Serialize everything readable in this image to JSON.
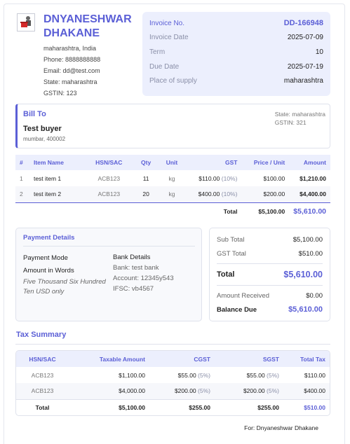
{
  "company": {
    "name": "DNYANESHWAR DHAKANE",
    "location": "maharashtra, India",
    "phone": "Phone: 8888888888",
    "email": "Email: dd@test.com",
    "state": "State: maharashtra",
    "gstin": "GSTIN: 123"
  },
  "invoice": {
    "rows": [
      {
        "label": "Invoice No.",
        "value": "DD-166948"
      },
      {
        "label": "Invoice Date",
        "value": "2025-07-09"
      },
      {
        "label": "Term",
        "value": "10"
      },
      {
        "label": "Due Date",
        "value": "2025-07-19"
      },
      {
        "label": "Place of supply",
        "value": "maharashtra"
      }
    ]
  },
  "bill_to": {
    "title": "Bill To",
    "name": "Test buyer",
    "address": "mumbar, 400002",
    "state": "State: maharashtra",
    "gstin": "GSTIN: 321"
  },
  "items": {
    "headers": [
      "#",
      "Item Name",
      "HSN/SAC",
      "Qty",
      "Unit",
      "GST",
      "Price / Unit",
      "Amount"
    ],
    "rows": [
      {
        "no": "1",
        "name": "test item 1",
        "hsn": "ACB123",
        "qty": "11",
        "unit": "kg",
        "gst": "$110.00",
        "gst_pct": "(10%)",
        "price": "$100.00",
        "amount": "$1,210.00"
      },
      {
        "no": "2",
        "name": "test item 2",
        "hsn": "ACB123",
        "qty": "20",
        "unit": "kg",
        "gst": "$400.00",
        "gst_pct": "(10%)",
        "price": "$200.00",
        "amount": "$4,400.00"
      }
    ],
    "total_label": "Total",
    "total_price": "$5,100.00",
    "total_amount": "$5,610.00"
  },
  "payment": {
    "title": "Payment Details",
    "mode_label": "Payment Mode",
    "words_label": "Amount in Words",
    "words_value": "Five Thousand Six Hundred Ten USD only",
    "bank_label": "Bank Details",
    "bank_name": "Bank: test bank",
    "account": "Account: 12345y543",
    "ifsc": "IFSC: vb4567"
  },
  "summary": {
    "sub_total_label": "Sub Total",
    "sub_total": "$5,100.00",
    "gst_total_label": "GST Total",
    "gst_total": "$510.00",
    "total_label": "Total",
    "total": "$5,610.00",
    "received_label": "Amount Received",
    "received": "$0.00",
    "balance_label": "Balance Due",
    "balance": "$5,610.00"
  },
  "tax_summary": {
    "title": "Tax Summary",
    "headers": [
      "HSN/SAC",
      "Taxable Amount",
      "CGST",
      "SGST",
      "Total Tax"
    ],
    "rows": [
      {
        "hsn": "ACB123",
        "taxable": "$1,100.00",
        "cgst": "$55.00",
        "cgst_pct": "(5%)",
        "sgst": "$55.00",
        "sgst_pct": "(5%)",
        "total": "$110.00"
      },
      {
        "hsn": "ACB123",
        "taxable": "$4,000.00",
        "cgst": "$200.00",
        "cgst_pct": "(5%)",
        "sgst": "$200.00",
        "sgst_pct": "(5%)",
        "total": "$400.00"
      }
    ],
    "total_label": "Total",
    "total_taxable": "$5,100.00",
    "total_cgst": "$255.00",
    "total_sgst": "$255.00",
    "total_tax": "$510.00"
  },
  "footer": "For: Dnyaneshwar Dhakane"
}
